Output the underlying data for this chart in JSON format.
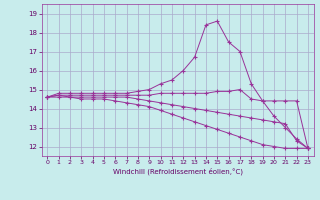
{
  "xlabel": "Windchill (Refroidissement éolien,°C)",
  "ylabel": "",
  "background_color": "#c8ecec",
  "line_color": "#993399",
  "grid_color": "#aaaacc",
  "xlim": [
    -0.5,
    23.5
  ],
  "ylim": [
    11.5,
    19.5
  ],
  "yticks": [
    12,
    13,
    14,
    15,
    16,
    17,
    18,
    19
  ],
  "xticks": [
    0,
    1,
    2,
    3,
    4,
    5,
    6,
    7,
    8,
    9,
    10,
    11,
    12,
    13,
    14,
    15,
    16,
    17,
    18,
    19,
    20,
    21,
    22,
    23
  ],
  "series": [
    {
      "x": [
        0,
        1,
        2,
        3,
        4,
        5,
        6,
        7,
        8,
        9,
        10,
        11,
        12,
        13,
        14,
        15,
        16,
        17,
        18,
        19,
        20,
        21,
        22,
        23
      ],
      "y": [
        14.6,
        14.8,
        14.8,
        14.8,
        14.8,
        14.8,
        14.8,
        14.8,
        14.9,
        15.0,
        15.3,
        15.5,
        16.0,
        16.7,
        18.4,
        18.6,
        17.5,
        17.0,
        15.3,
        14.4,
        13.6,
        13.0,
        12.4,
        11.9
      ]
    },
    {
      "x": [
        0,
        1,
        2,
        3,
        4,
        5,
        6,
        7,
        8,
        9,
        10,
        11,
        12,
        13,
        14,
        15,
        16,
        17,
        18,
        19,
        20,
        21,
        22,
        23
      ],
      "y": [
        14.6,
        14.7,
        14.7,
        14.7,
        14.7,
        14.7,
        14.7,
        14.7,
        14.7,
        14.7,
        14.8,
        14.8,
        14.8,
        14.8,
        14.8,
        14.9,
        14.9,
        15.0,
        14.5,
        14.4,
        14.4,
        14.4,
        14.4,
        11.9
      ]
    },
    {
      "x": [
        0,
        1,
        2,
        3,
        4,
        5,
        6,
        7,
        8,
        9,
        10,
        11,
        12,
        13,
        14,
        15,
        16,
        17,
        18,
        19,
        20,
        21,
        22,
        23
      ],
      "y": [
        14.6,
        14.7,
        14.6,
        14.6,
        14.6,
        14.6,
        14.6,
        14.6,
        14.5,
        14.4,
        14.3,
        14.2,
        14.1,
        14.0,
        13.9,
        13.8,
        13.7,
        13.6,
        13.5,
        13.4,
        13.3,
        13.2,
        12.3,
        11.9
      ]
    },
    {
      "x": [
        0,
        1,
        2,
        3,
        4,
        5,
        6,
        7,
        8,
        9,
        10,
        11,
        12,
        13,
        14,
        15,
        16,
        17,
        18,
        19,
        20,
        21,
        22,
        23
      ],
      "y": [
        14.6,
        14.6,
        14.6,
        14.5,
        14.5,
        14.5,
        14.4,
        14.3,
        14.2,
        14.1,
        13.9,
        13.7,
        13.5,
        13.3,
        13.1,
        12.9,
        12.7,
        12.5,
        12.3,
        12.1,
        12.0,
        11.9,
        11.9,
        11.9
      ]
    }
  ]
}
